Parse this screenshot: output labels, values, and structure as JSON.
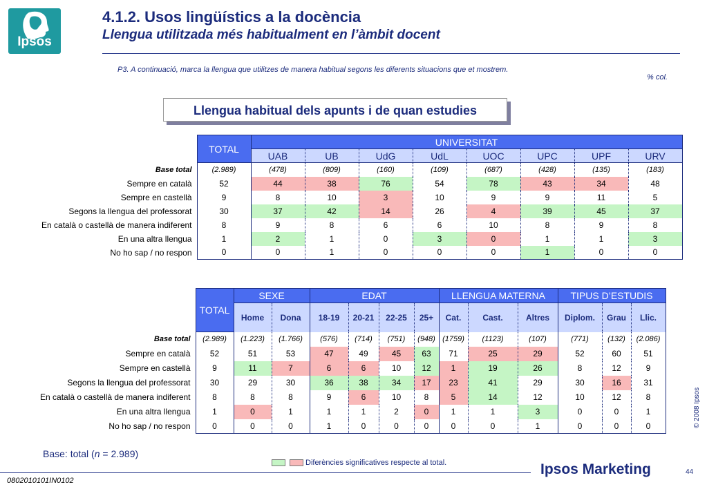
{
  "logo": {
    "text": "Ipsos"
  },
  "header": {
    "title": "4.1.2. Usos lingüístics a la docència",
    "subtitle": "Llengua utilitzada més habitualment en l’àmbit docent"
  },
  "question": "P3. A continuació, marca la llengua que utilitzes de manera habitual segons les diferents situacions que et mostrem.",
  "pct_col": "% col.",
  "box_title": "Llengua habitual dels apunts i de quan estudies",
  "table1": {
    "total_label": "TOTAL",
    "group_label": "UNIVERSITAT",
    "columns": [
      "UAB",
      "UB",
      "UdG",
      "UdL",
      "UOC",
      "UPC",
      "UPF",
      "URV"
    ],
    "base": {
      "label": "Base total",
      "total": "(2.989)",
      "values": [
        "(478)",
        "(809)",
        "(160)",
        "(109)",
        "(687)",
        "(428)",
        "(135)",
        "(183)"
      ]
    },
    "rows": [
      {
        "label": "Sempre en català",
        "total": "52",
        "values": [
          "44",
          "38",
          "76",
          "54",
          "78",
          "43",
          "34",
          "48"
        ]
      },
      {
        "label": "Sempre en castellà",
        "total": "9",
        "values": [
          "8",
          "10",
          "3",
          "10",
          "9",
          "9",
          "11",
          "5"
        ]
      },
      {
        "label": "Segons la llengua del professorat",
        "total": "30",
        "values": [
          "37",
          "42",
          "14",
          "26",
          "4",
          "39",
          "45",
          "37"
        ]
      },
      {
        "label": "En català o castellà de manera indiferent",
        "total": "8",
        "values": [
          "9",
          "8",
          "6",
          "6",
          "10",
          "8",
          "9",
          "8"
        ]
      },
      {
        "label": "En una altra llengua",
        "total": "1",
        "values": [
          "2",
          "1",
          "0",
          "3",
          "0",
          "1",
          "1",
          "3"
        ]
      },
      {
        "label": "No ho sap / no respon",
        "total": "0",
        "values": [
          "0",
          "1",
          "0",
          "0",
          "0",
          "1",
          "0",
          "0"
        ]
      }
    ]
  },
  "table2": {
    "total_label": "TOTAL",
    "groups": [
      "SEXE",
      "EDAT",
      "LLENGUA MATERNA",
      "TIPUS D’ESTUDIS"
    ],
    "columns": [
      "Home",
      "Dona",
      "18-19",
      "20-21",
      "22-25",
      "25+",
      "Cat.",
      "Cast.",
      "Altres",
      "Diplom.",
      "Grau",
      "Llic."
    ],
    "base": {
      "label": "Base total",
      "total": "(2.989)",
      "values": [
        "(1.223)",
        "(1.766)",
        "(576)",
        "(714)",
        "(751)",
        "(948)",
        "(1759)",
        "(1123)",
        "(107)",
        "(771)",
        "(132)",
        "(2.086)"
      ]
    },
    "rows": [
      {
        "label": "Sempre en català",
        "total": "52",
        "values": [
          "51",
          "53",
          "47",
          "49",
          "45",
          "63",
          "71",
          "25",
          "29",
          "52",
          "60",
          "51"
        ]
      },
      {
        "label": "Sempre en castellà",
        "total": "9",
        "values": [
          "11",
          "7",
          "6",
          "6",
          "10",
          "12",
          "1",
          "19",
          "26",
          "8",
          "12",
          "9"
        ]
      },
      {
        "label": "Segons la llengua del professorat",
        "total": "30",
        "values": [
          "29",
          "30",
          "36",
          "38",
          "34",
          "17",
          "23",
          "41",
          "29",
          "30",
          "16",
          "31"
        ]
      },
      {
        "label": "En català o castellà de manera indiferent",
        "total": "8",
        "values": [
          "8",
          "8",
          "9",
          "6",
          "10",
          "8",
          "5",
          "14",
          "12",
          "10",
          "12",
          "8"
        ]
      },
      {
        "label": "En una altra llengua",
        "total": "1",
        "values": [
          "0",
          "1",
          "1",
          "1",
          "2",
          "0",
          "1",
          "1",
          "3",
          "0",
          "0",
          "1"
        ]
      },
      {
        "label": "No ho sap / no respon",
        "total": "0",
        "values": [
          "0",
          "0",
          "1",
          "0",
          "0",
          "0",
          "0",
          "0",
          "1",
          "0",
          "0",
          "0"
        ]
      }
    ]
  },
  "footer": {
    "base_prefix": "Base: total (",
    "base_n": "n",
    "base_suffix": " = 2.989)",
    "legend_text": "Diferències significatives respecte al total.",
    "code": "0802010101IN0102",
    "brand": "Ipsos Marketing",
    "page": "44",
    "copyright": "© 2008 Ipsos"
  },
  "colors": {
    "primary": "#1b2b7c",
    "header_blue": "#4a6cf0",
    "subheader": "#ccd8ff",
    "sig_higher": "#c5f5c5",
    "sig_lower": "#f9b9b9",
    "logo_teal": "#1f9aa0"
  }
}
